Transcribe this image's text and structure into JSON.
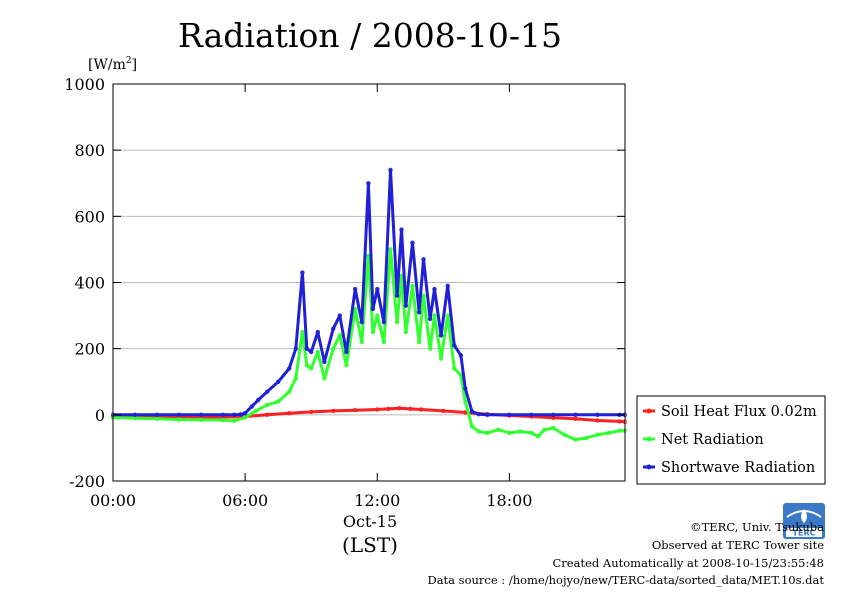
{
  "chart_data": {
    "type": "line",
    "title": "Radiation / 2008-10-15",
    "ylabel": "[W/m",
    "ylabel_sup": "2",
    "ylabel_end": "]",
    "xlabel": "(LST)",
    "date_label": "Oct-15",
    "ylim": [
      -200,
      1000
    ],
    "xlim": [
      0,
      23.25
    ],
    "yticks": [
      -200,
      0,
      200,
      400,
      600,
      800,
      1000
    ],
    "xticks": [
      {
        "v": 0,
        "label": "00:00"
      },
      {
        "v": 6,
        "label": "06:00"
      },
      {
        "v": 12,
        "label": "12:00"
      },
      {
        "v": 18,
        "label": "18:00"
      }
    ],
    "grid": true,
    "legend_position": "right-bottom",
    "series": [
      {
        "name": "Soil Heat Flux 0.02m",
        "color": "#ff2020",
        "x": [
          0,
          1,
          2,
          3,
          4,
          5,
          6,
          7,
          8,
          9,
          10,
          11,
          12,
          12.5,
          13,
          13.5,
          14,
          15,
          16,
          17,
          18,
          19,
          20,
          21,
          22,
          23,
          23.25
        ],
        "y": [
          -5,
          -6,
          -7,
          -8,
          -8,
          -7,
          -5,
          0,
          5,
          9,
          12,
          14,
          16,
          18,
          20,
          18,
          16,
          12,
          7,
          2,
          -2,
          -5,
          -9,
          -12,
          -17,
          -20,
          -21
        ]
      },
      {
        "name": "Net Radiation",
        "color": "#30ff30",
        "x": [
          0,
          1,
          2,
          3,
          4,
          5,
          5.5,
          6,
          6.5,
          7,
          7.5,
          8,
          8.3,
          8.6,
          8.8,
          9,
          9.3,
          9.6,
          10,
          10.3,
          10.6,
          11,
          11.3,
          11.6,
          11.8,
          12,
          12.3,
          12.6,
          12.9,
          13.1,
          13.3,
          13.6,
          13.9,
          14.1,
          14.4,
          14.6,
          14.9,
          15.2,
          15.5,
          15.8,
          16,
          16.3,
          16.6,
          17,
          17.5,
          18,
          18.5,
          19,
          19.3,
          19.6,
          20,
          20.5,
          21,
          21.5,
          22,
          22.5,
          23,
          23.25
        ],
        "y": [
          -8,
          -10,
          -12,
          -14,
          -15,
          -16,
          -18,
          -8,
          12,
          30,
          40,
          70,
          110,
          250,
          150,
          140,
          190,
          110,
          200,
          240,
          150,
          320,
          220,
          480,
          250,
          300,
          220,
          500,
          280,
          420,
          250,
          390,
          220,
          360,
          200,
          300,
          170,
          300,
          140,
          120,
          40,
          -35,
          -50,
          -55,
          -45,
          -55,
          -50,
          -55,
          -65,
          -45,
          -40,
          -60,
          -75,
          -70,
          -60,
          -55,
          -48,
          -48
        ]
      },
      {
        "name": "Shortwave Radiation",
        "color": "#2020d8",
        "x": [
          0,
          1,
          2,
          3,
          4,
          5,
          5.5,
          5.8,
          6,
          6.3,
          6.6,
          7,
          7.5,
          8,
          8.3,
          8.6,
          8.8,
          9,
          9.3,
          9.6,
          10,
          10.3,
          10.6,
          11,
          11.3,
          11.6,
          11.8,
          12,
          12.3,
          12.6,
          12.9,
          13.1,
          13.3,
          13.6,
          13.9,
          14.1,
          14.4,
          14.6,
          14.9,
          15.2,
          15.5,
          15.8,
          16,
          16.3,
          16.6,
          17,
          18,
          19,
          20,
          21,
          22,
          23,
          23.25
        ],
        "y": [
          0,
          0,
          0,
          0,
          0,
          0,
          0,
          1,
          5,
          25,
          45,
          70,
          100,
          140,
          200,
          430,
          200,
          190,
          250,
          160,
          260,
          300,
          190,
          380,
          280,
          700,
          320,
          380,
          280,
          740,
          360,
          560,
          330,
          520,
          310,
          470,
          290,
          380,
          240,
          390,
          210,
          180,
          80,
          10,
          2,
          0,
          0,
          0,
          0,
          0,
          0,
          0,
          0
        ]
      }
    ]
  },
  "footer": {
    "copyright": "©TERC, Univ. Tsukuba",
    "observed": "Observed at TERC Tower site",
    "created": "Created Automatically at 2008-10-15/23:55:48",
    "source": "Data source : /home/hojyo/new/TERC-data/sorted_data/MET.10s.dat",
    "logo_text": "TERC"
  }
}
